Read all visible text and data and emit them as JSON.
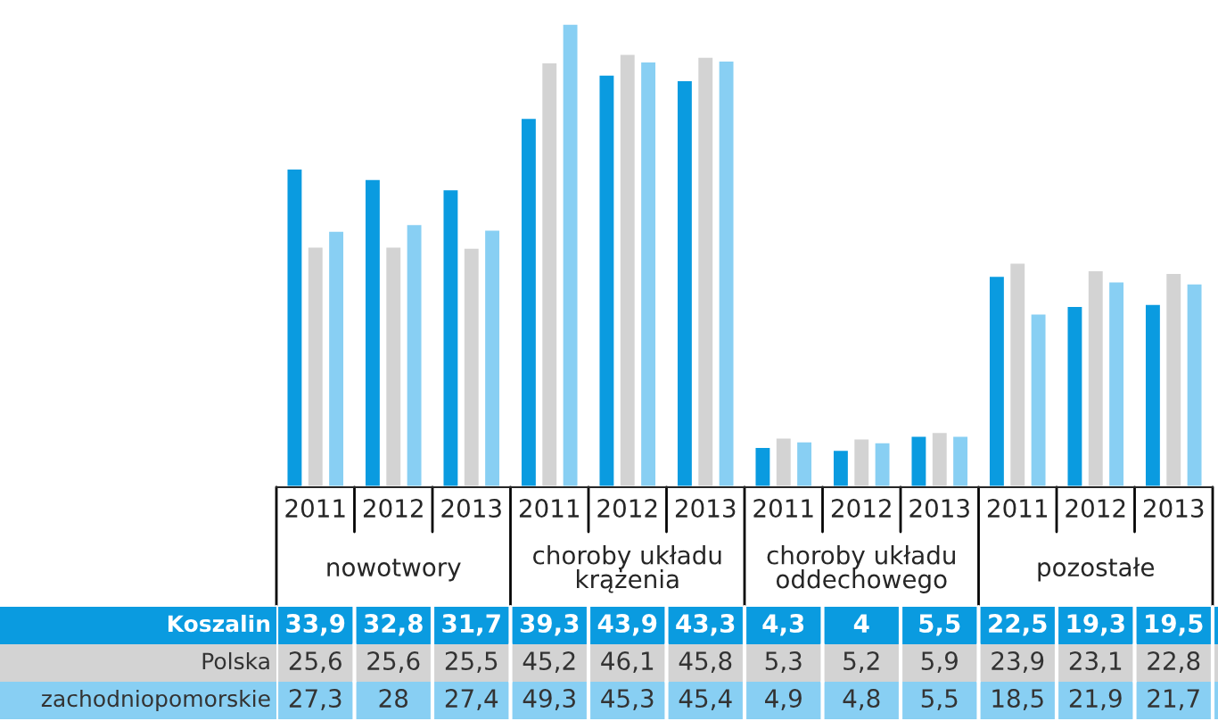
{
  "chart_data": {
    "type": "bar",
    "categories": [
      "2011",
      "2012",
      "2013",
      "2011",
      "2012",
      "2013",
      "2011",
      "2012",
      "2013",
      "2011",
      "2012",
      "2013"
    ],
    "series": [
      {
        "name": "Koszalin",
        "color": "#0a9be0",
        "values": [
          33.9,
          32.8,
          31.7,
          39.3,
          43.9,
          43.3,
          4.3,
          4,
          5.5,
          22.5,
          19.3,
          19.5
        ],
        "value_labels": [
          "33,9",
          "32,8",
          "31,7",
          "39,3",
          "43,9",
          "43,3",
          "4,3",
          "4",
          "5,5",
          "22,5",
          "19,3",
          "19,5"
        ]
      },
      {
        "name": "Polska",
        "color": "#d3d3d3",
        "values": [
          25.6,
          25.6,
          25.5,
          45.2,
          46.1,
          45.8,
          5.3,
          5.2,
          5.9,
          23.9,
          23.1,
          22.8
        ],
        "value_labels": [
          "25,6",
          "25,6",
          "25,5",
          "45,2",
          "46,1",
          "45,8",
          "5,3",
          "5,2",
          "5,9",
          "23,9",
          "23,1",
          "22,8"
        ]
      },
      {
        "name": "zachodniopomorskie",
        "color": "#88cff3",
        "values": [
          27.3,
          28,
          27.4,
          49.3,
          45.3,
          45.4,
          4.9,
          4.8,
          5.5,
          18.5,
          21.9,
          21.7
        ],
        "value_labels": [
          "27,3",
          "28",
          "27,4",
          "49,3",
          "45,3",
          "45,4",
          "4,9",
          "4,8",
          "5,5",
          "18,5",
          "21,9",
          "21,7"
        ]
      }
    ],
    "annotations": [
      "nowotwory",
      "choroby układu\nkrążenia",
      "choroby układu\noddechowego",
      "pozostałe"
    ],
    "legend": false
  }
}
